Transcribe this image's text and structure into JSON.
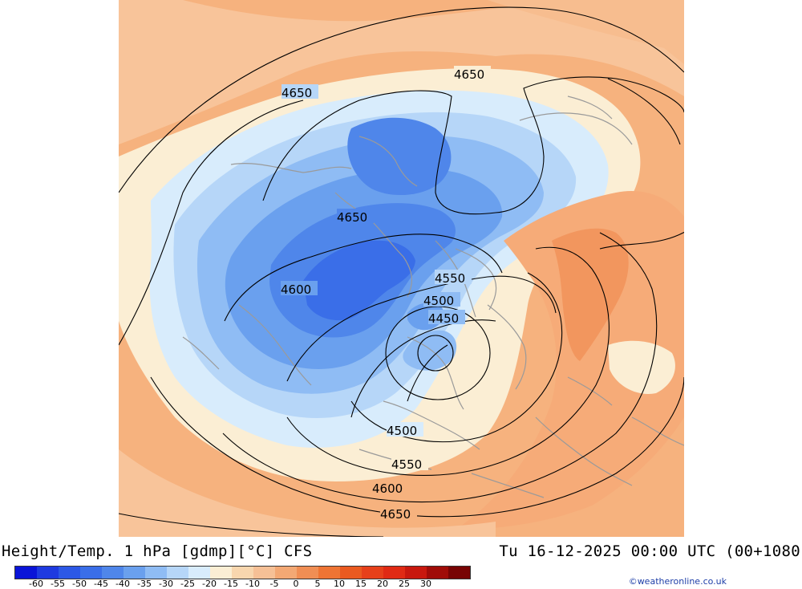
{
  "header": {
    "title_left": "Height/Temp. 1 hPa [gdmp][°C] CFS",
    "title_right": "Tu 16-12-2025 00:00 UTC (00+1080"
  },
  "map": {
    "contour_labels": [
      {
        "id": "c1",
        "text": "4650"
      },
      {
        "id": "c2",
        "text": "4650"
      },
      {
        "id": "c3",
        "text": "4650"
      },
      {
        "id": "c4",
        "text": "4600"
      },
      {
        "id": "c5",
        "text": "4550"
      },
      {
        "id": "c6",
        "text": "4500"
      },
      {
        "id": "c7",
        "text": "4450"
      },
      {
        "id": "c8",
        "text": "4500"
      },
      {
        "id": "c9",
        "text": "4550"
      },
      {
        "id": "c10",
        "text": "4600"
      },
      {
        "id": "c11",
        "text": "4650"
      }
    ]
  },
  "legend": {
    "colors": [
      "#0a14d8",
      "#1e3ae0",
      "#2c58e6",
      "#3a6ee8",
      "#4f86ea",
      "#6aa0ee",
      "#8fbcf4",
      "#b6d6f8",
      "#d8ecfc",
      "#fbeed4",
      "#f8d6ae",
      "#f6c096",
      "#f3a874",
      "#f08e54",
      "#ee7434",
      "#ea5a20",
      "#e6401a",
      "#e02a14",
      "#c8180e",
      "#a00c08",
      "#780404"
    ],
    "labels": [
      "-60",
      "-55",
      "-50",
      "-45",
      "-40",
      "-35",
      "-30",
      "-25",
      "-20",
      "-15",
      "-10",
      "-5",
      "0",
      "5",
      "10",
      "15",
      "20",
      "25",
      "30"
    ]
  },
  "credit": "©weatheronline.co.uk"
}
